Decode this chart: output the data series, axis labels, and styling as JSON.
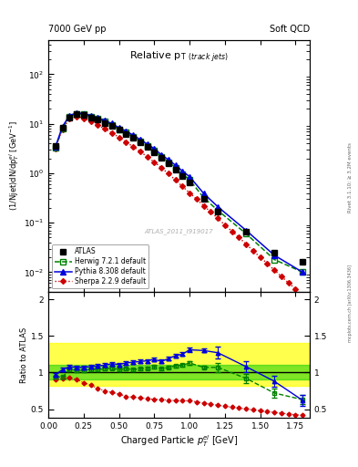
{
  "title_left": "7000 GeV pp",
  "title_right": "Soft QCD",
  "main_title": "Relative p_{T (track jets)}",
  "xlabel": "Charged Particle $\\mathregular{p_T^{el}}$ [GeV]",
  "ylabel_main": "(1/Njet)dN/dp$^{el}_{T}$ [GeV$^{-1}$]",
  "ylabel_ratio": "Ratio to ATLAS",
  "right_label": "Rivet 3.1.10, ≥ 3.2M events",
  "watermark": "ATLAS_2011_I919017",
  "atlas_x": [
    0.05,
    0.1,
    0.15,
    0.2,
    0.25,
    0.3,
    0.35,
    0.4,
    0.45,
    0.5,
    0.55,
    0.6,
    0.65,
    0.7,
    0.75,
    0.8,
    0.85,
    0.9,
    0.95,
    1.0,
    1.1,
    1.2,
    1.4,
    1.6,
    1.8
  ],
  "atlas_y": [
    3.5,
    8.5,
    13.5,
    15.5,
    15.0,
    13.5,
    12.0,
    10.5,
    9.0,
    7.5,
    6.3,
    5.2,
    4.2,
    3.35,
    2.65,
    2.05,
    1.58,
    1.18,
    0.88,
    0.65,
    0.3,
    0.165,
    0.065,
    0.025,
    0.016
  ],
  "herwig_x": [
    0.05,
    0.1,
    0.15,
    0.2,
    0.25,
    0.3,
    0.35,
    0.4,
    0.45,
    0.5,
    0.55,
    0.6,
    0.65,
    0.7,
    0.75,
    0.8,
    0.85,
    0.9,
    0.95,
    1.0,
    1.1,
    1.2,
    1.4,
    1.6,
    1.8
  ],
  "herwig_y": [
    3.3,
    8.0,
    14.0,
    16.0,
    15.5,
    14.0,
    12.5,
    11.0,
    9.5,
    7.8,
    6.6,
    5.4,
    4.4,
    3.55,
    2.85,
    2.15,
    1.69,
    1.29,
    0.97,
    0.735,
    0.32,
    0.177,
    0.06,
    0.018,
    0.01
  ],
  "pythia_x": [
    0.05,
    0.1,
    0.15,
    0.2,
    0.25,
    0.3,
    0.35,
    0.4,
    0.45,
    0.5,
    0.55,
    0.6,
    0.65,
    0.7,
    0.75,
    0.8,
    0.85,
    0.9,
    0.95,
    1.0,
    1.1,
    1.2,
    1.4,
    1.6,
    1.8
  ],
  "pythia_y": [
    3.4,
    8.8,
    14.6,
    16.6,
    16.0,
    14.6,
    13.1,
    11.5,
    10.1,
    8.3,
    7.1,
    5.9,
    4.8,
    3.9,
    3.13,
    2.36,
    1.88,
    1.45,
    1.1,
    0.855,
    0.39,
    0.21,
    0.07,
    0.022,
    0.01
  ],
  "sherpa_x": [
    0.05,
    0.1,
    0.15,
    0.2,
    0.25,
    0.3,
    0.35,
    0.4,
    0.45,
    0.5,
    0.55,
    0.6,
    0.65,
    0.7,
    0.75,
    0.8,
    0.85,
    0.9,
    0.95,
    1.0,
    1.05,
    1.1,
    1.15,
    1.2,
    1.25,
    1.3,
    1.35,
    1.4,
    1.45,
    1.5,
    1.55,
    1.6,
    1.65,
    1.7,
    1.75,
    1.8
  ],
  "sherpa_y": [
    3.2,
    7.8,
    12.5,
    14.0,
    12.9,
    11.2,
    9.35,
    7.88,
    6.55,
    5.3,
    4.25,
    3.45,
    2.75,
    2.15,
    1.68,
    1.3,
    0.98,
    0.73,
    0.54,
    0.4,
    0.3,
    0.22,
    0.165,
    0.122,
    0.09,
    0.067,
    0.05,
    0.037,
    0.027,
    0.02,
    0.015,
    0.011,
    0.0082,
    0.0061,
    0.0046,
    0.0034
  ],
  "herwig_ratio": [
    0.94,
    0.94,
    1.04,
    1.03,
    1.03,
    1.04,
    1.04,
    1.05,
    1.06,
    1.04,
    1.05,
    1.04,
    1.05,
    1.06,
    1.08,
    1.05,
    1.07,
    1.09,
    1.1,
    1.13,
    1.07,
    1.07,
    0.92,
    0.72,
    0.63
  ],
  "pythia_ratio": [
    0.97,
    1.04,
    1.08,
    1.07,
    1.07,
    1.08,
    1.09,
    1.1,
    1.12,
    1.11,
    1.13,
    1.14,
    1.15,
    1.16,
    1.18,
    1.15,
    1.19,
    1.23,
    1.25,
    1.31,
    1.3,
    1.27,
    1.08,
    0.88,
    0.62
  ],
  "sherpa_ratio": [
    0.91,
    0.92,
    0.925,
    0.905,
    0.86,
    0.83,
    0.78,
    0.75,
    0.727,
    0.707,
    0.675,
    0.663,
    0.655,
    0.642,
    0.635,
    0.634,
    0.621,
    0.618,
    0.614,
    0.615,
    0.6,
    0.583,
    0.568,
    0.553,
    0.54,
    0.527,
    0.515,
    0.502,
    0.49,
    0.478,
    0.467,
    0.456,
    0.445,
    0.435,
    0.425,
    0.415
  ],
  "atlas_color": "#000000",
  "herwig_color": "#008000",
  "pythia_color": "#0000dd",
  "sherpa_color": "#cc0000",
  "band_yellow_lo": 0.82,
  "band_yellow_hi": 1.4,
  "band_green_lo": 0.9,
  "band_green_hi": 1.1,
  "xlim": [
    0.0,
    1.85
  ],
  "ylim_main": [
    0.004,
    500
  ],
  "ylim_ratio": [
    0.38,
    2.1
  ]
}
